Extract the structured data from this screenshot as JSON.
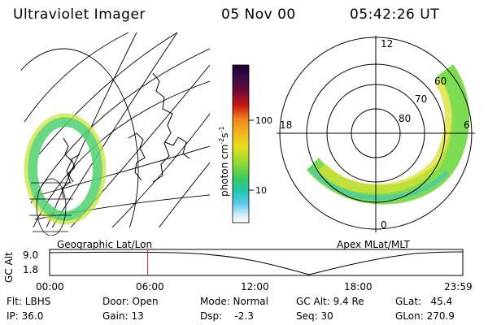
{
  "header": {
    "instrument": "Ultraviolet Imager",
    "date": "05 Nov 00",
    "time": "05:42:26 UT"
  },
  "colorbar": {
    "label": "photon cm",
    "label_exp1": "-2",
    "label_mid": "s",
    "label_exp2": "-1",
    "ticks": [
      "100",
      "10"
    ],
    "colors": [
      "#1a0033",
      "#3a0a4a",
      "#6a0a3a",
      "#9a0a1a",
      "#c81a10",
      "#e04010",
      "#f08020",
      "#f4b020",
      "#e8e020",
      "#b0e020",
      "#70d830",
      "#40c840",
      "#20c8a0",
      "#30b8e0",
      "#90d8f0",
      "#e0f0f8",
      "#ffffff"
    ]
  },
  "left_panel": {
    "caption": "Geographic Lat/Lon"
  },
  "right_panel": {
    "caption": "Apex MLat/MLT",
    "mlt_labels": {
      "top": "12",
      "left": "18",
      "right": "6",
      "bottom": "0"
    },
    "lat_labels": [
      "60",
      "70",
      "80"
    ]
  },
  "altitude_plot": {
    "ylabel": "GC Alt",
    "yticks": [
      "9.0",
      "1.8"
    ],
    "xticks": [
      "00:00",
      "06:00",
      "12:00",
      "18:00",
      "23:59"
    ],
    "marker_time": "05:42",
    "marker_color": "#d02020"
  },
  "info": {
    "flt": "Flt: LBHS",
    "ip": "IP: 36.0",
    "door": "Door: Open",
    "gain": "Gain: 13",
    "mode": "Mode: Normal",
    "dsp": "Dsp:    -2.3",
    "gcalt": "GC Alt: 9.4 Re",
    "seq": "Seq: 30",
    "glat": "GLat:   45.4",
    "glon": "GLon: 270.9"
  }
}
